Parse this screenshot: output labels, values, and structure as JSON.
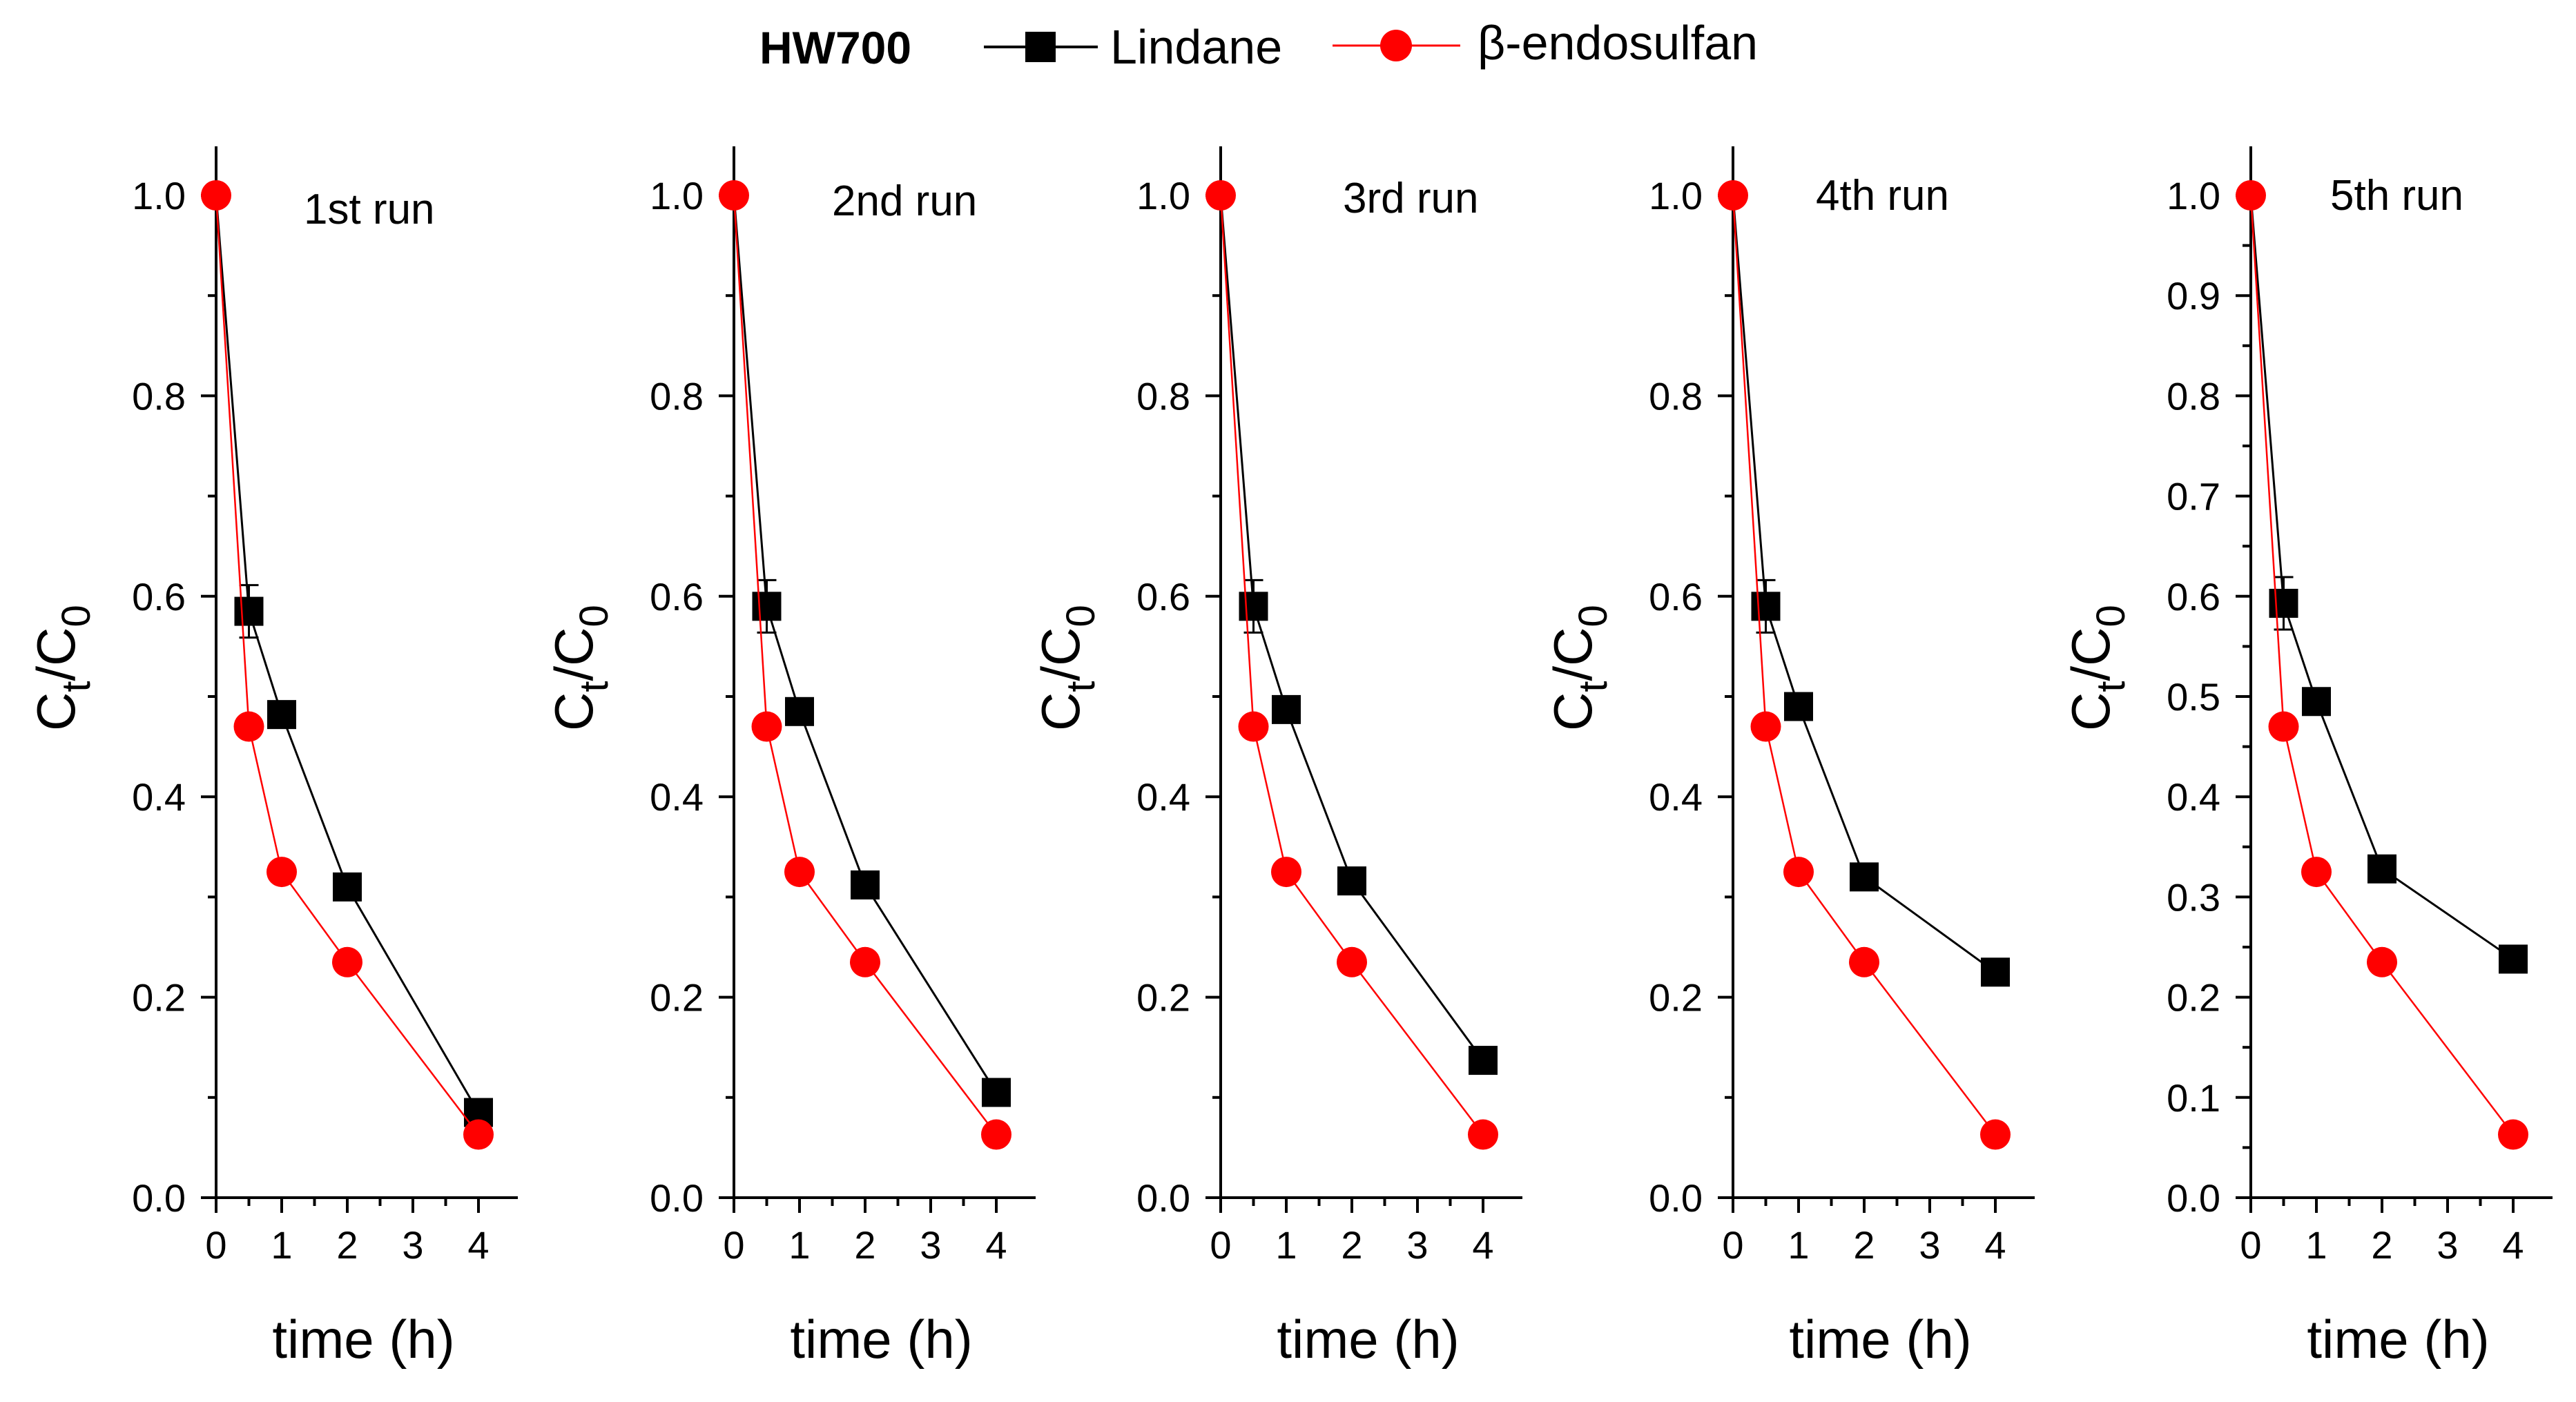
{
  "legend": {
    "title": "HW700",
    "entries": [
      {
        "name": "Lindane",
        "marker": "square",
        "color": "#000000"
      },
      {
        "name": "β-endosulfan",
        "marker": "circle",
        "color": "#ff0000"
      }
    ]
  },
  "chart_data": [
    {
      "type": "line",
      "title": "1st run",
      "xlabel": "time (h)",
      "ylabel": "Ct/C0",
      "ylim": [
        0,
        1.05
      ],
      "xticks": [
        0,
        1,
        2,
        3,
        4
      ],
      "yticks": [
        0.0,
        0.2,
        0.4,
        0.6,
        0.8,
        1.0
      ],
      "series": [
        {
          "name": "Lindane",
          "x": [
            0,
            0.5,
            1,
            2,
            4
          ],
          "y": [
            1.0,
            0.585,
            0.482,
            0.31,
            0.085
          ]
        },
        {
          "name": "β-endosulfan",
          "x": [
            0,
            0.5,
            1,
            2,
            4
          ],
          "y": [
            1.0,
            0.47,
            0.325,
            0.235,
            0.063
          ]
        }
      ]
    },
    {
      "type": "line",
      "title": "2nd run",
      "xlabel": "time (h)",
      "ylabel": "Ct/C0",
      "ylim": [
        0,
        1.05
      ],
      "xticks": [
        0,
        1,
        2,
        3,
        4
      ],
      "yticks": [
        0.0,
        0.2,
        0.4,
        0.6,
        0.8,
        1.0
      ],
      "series": [
        {
          "name": "Lindane",
          "x": [
            0,
            0.5,
            1,
            2,
            4
          ],
          "y": [
            1.0,
            0.59,
            0.485,
            0.312,
            0.105
          ]
        },
        {
          "name": "β-endosulfan",
          "x": [
            0,
            0.5,
            1,
            2,
            4
          ],
          "y": [
            1.0,
            0.47,
            0.325,
            0.235,
            0.063
          ]
        }
      ]
    },
    {
      "type": "line",
      "title": "3rd run",
      "xlabel": "time (h)",
      "ylabel": "Ct/C0",
      "ylim": [
        0,
        1.05
      ],
      "xticks": [
        0,
        1,
        2,
        3,
        4
      ],
      "yticks": [
        0.0,
        0.2,
        0.4,
        0.6,
        0.8,
        1.0
      ],
      "series": [
        {
          "name": "Lindane",
          "x": [
            0,
            0.5,
            1,
            2,
            4
          ],
          "y": [
            1.0,
            0.59,
            0.487,
            0.316,
            0.137
          ]
        },
        {
          "name": "β-endosulfan",
          "x": [
            0,
            0.5,
            1,
            2,
            4
          ],
          "y": [
            1.0,
            0.47,
            0.325,
            0.235,
            0.063
          ]
        }
      ]
    },
    {
      "type": "line",
      "title": "4th run",
      "xlabel": "time (h)",
      "ylabel": "Ct/C0",
      "ylim": [
        0,
        1.05
      ],
      "xticks": [
        0,
        1,
        2,
        3,
        4
      ],
      "yticks": [
        0.0,
        0.2,
        0.4,
        0.6,
        0.8,
        1.0
      ],
      "series": [
        {
          "name": "Lindane",
          "x": [
            0,
            0.5,
            1,
            2,
            4
          ],
          "y": [
            1.0,
            0.59,
            0.49,
            0.32,
            0.225
          ]
        },
        {
          "name": "β-endosulfan",
          "x": [
            0,
            0.5,
            1,
            2,
            4
          ],
          "y": [
            1.0,
            0.47,
            0.325,
            0.235,
            0.063
          ]
        }
      ]
    },
    {
      "type": "line",
      "title": "5th run",
      "xlabel": "time (h)",
      "ylabel": "Ct/C0",
      "ylim": [
        0,
        1.05
      ],
      "xticks": [
        0,
        1,
        2,
        3,
        4
      ],
      "yticks": [
        0.0,
        0.1,
        0.2,
        0.3,
        0.4,
        0.5,
        0.6,
        0.7,
        0.8,
        0.9,
        1.0
      ],
      "series": [
        {
          "name": "Lindane",
          "x": [
            0,
            0.5,
            1,
            2,
            4
          ],
          "y": [
            1.0,
            0.593,
            0.495,
            0.328,
            0.238
          ]
        },
        {
          "name": "β-endosulfan",
          "x": [
            0,
            0.5,
            1,
            2,
            4
          ],
          "y": [
            1.0,
            0.47,
            0.325,
            0.235,
            0.063
          ]
        }
      ]
    }
  ]
}
